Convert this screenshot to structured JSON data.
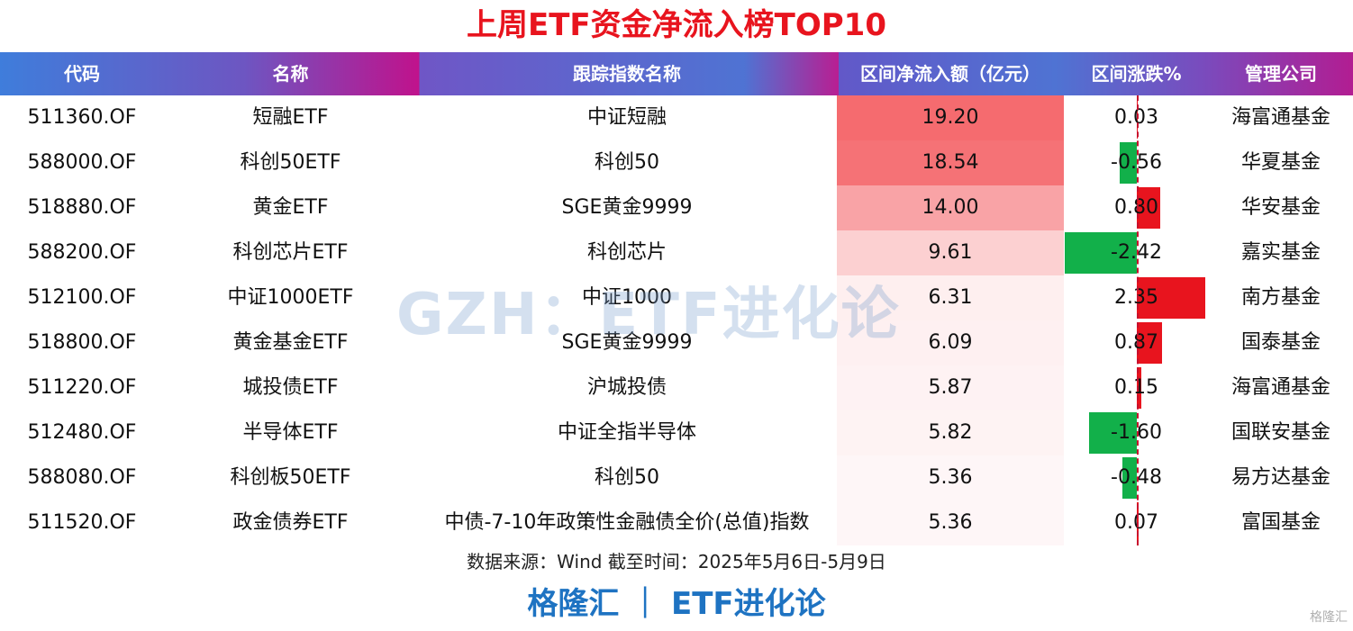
{
  "title": "上周ETF资金净流入榜TOP10",
  "headers": {
    "code": "代码",
    "name": "名称",
    "index": "跟踪指数名称",
    "flow": "区间净流入额（亿元）",
    "change": "区间涨跌%",
    "manager": "管理公司"
  },
  "rows": [
    {
      "code": "511360.OF",
      "name": "短融ETF",
      "index": "中证短融",
      "flow": "19.20",
      "change": "0.03",
      "manager": "海富通基金"
    },
    {
      "code": "588000.OF",
      "name": "科创50ETF",
      "index": "科创50",
      "flow": "18.54",
      "change": "-0.56",
      "manager": "华夏基金"
    },
    {
      "code": "518880.OF",
      "name": "黄金ETF",
      "index": "SGE黄金9999",
      "flow": "14.00",
      "change": "0.80",
      "manager": "华安基金"
    },
    {
      "code": "588200.OF",
      "name": "科创芯片ETF",
      "index": "科创芯片",
      "flow": "9.61",
      "change": "-2.42",
      "manager": "嘉实基金"
    },
    {
      "code": "512100.OF",
      "name": "中证1000ETF",
      "index": "中证1000",
      "flow": "6.31",
      "change": "2.35",
      "manager": "南方基金"
    },
    {
      "code": "518800.OF",
      "name": "黄金基金ETF",
      "index": "SGE黄金9999",
      "flow": "6.09",
      "change": "0.87",
      "manager": "国泰基金"
    },
    {
      "code": "511220.OF",
      "name": "城投债ETF",
      "index": "沪城投债",
      "flow": "5.87",
      "change": "0.15",
      "manager": "海富通基金"
    },
    {
      "code": "512480.OF",
      "name": "半导体ETF",
      "index": "中证全指半导体",
      "flow": "5.82",
      "change": "-1.60",
      "manager": "国联安基金"
    },
    {
      "code": "588080.OF",
      "name": "科创板50ETF",
      "index": "科创50",
      "flow": "5.36",
      "change": "-0.48",
      "manager": "易方达基金"
    },
    {
      "code": "511520.OF",
      "name": "政金债券ETF",
      "index": "中债-7-10年政策性金融债全价(总值)指数",
      "flow": "5.36",
      "change": "0.07",
      "manager": "富国基金"
    }
  ],
  "watermark": "GZH：ETF进化论",
  "source": "数据来源：Wind 截至时间：2025年5月6日-5月9日",
  "brand": "格隆汇 ｜ ETF进化论",
  "corner_logo": "格隆汇",
  "colors": {
    "title": "#e8141e",
    "positive_bar": "#e8141e",
    "negative_bar": "#12b04a",
    "heat_max": "#f56b6f",
    "brand": "#1e73c2"
  }
}
